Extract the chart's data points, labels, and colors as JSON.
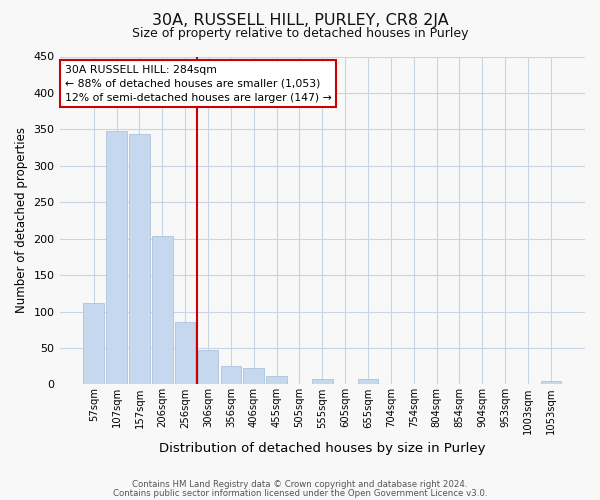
{
  "title": "30A, RUSSELL HILL, PURLEY, CR8 2JA",
  "subtitle": "Size of property relative to detached houses in Purley",
  "xlabel": "Distribution of detached houses by size in Purley",
  "ylabel": "Number of detached properties",
  "bin_labels": [
    "57sqm",
    "107sqm",
    "157sqm",
    "206sqm",
    "256sqm",
    "306sqm",
    "356sqm",
    "406sqm",
    "455sqm",
    "505sqm",
    "555sqm",
    "605sqm",
    "655sqm",
    "704sqm",
    "754sqm",
    "804sqm",
    "854sqm",
    "904sqm",
    "953sqm",
    "1003sqm",
    "1053sqm"
  ],
  "bar_values": [
    112,
    348,
    343,
    204,
    85,
    47,
    25,
    22,
    12,
    0,
    7,
    0,
    8,
    0,
    0,
    0,
    0,
    0,
    0,
    0,
    4
  ],
  "bar_color": "#c5d8ed",
  "bar_edge_color": "#a0bcd8",
  "vline_color": "#cc0000",
  "annotation_title": "30A RUSSELL HILL: 284sqm",
  "annotation_line1": "← 88% of detached houses are smaller (1,053)",
  "annotation_line2": "12% of semi-detached houses are larger (147) →",
  "annotation_box_color": "#cc0000",
  "ylim": [
    0,
    450
  ],
  "yticks": [
    0,
    50,
    100,
    150,
    200,
    250,
    300,
    350,
    400,
    450
  ],
  "footer1": "Contains HM Land Registry data © Crown copyright and database right 2024.",
  "footer2": "Contains public sector information licensed under the Open Government Licence v3.0.",
  "background_color": "#f8f8f8",
  "grid_color": "#c8d4e4"
}
